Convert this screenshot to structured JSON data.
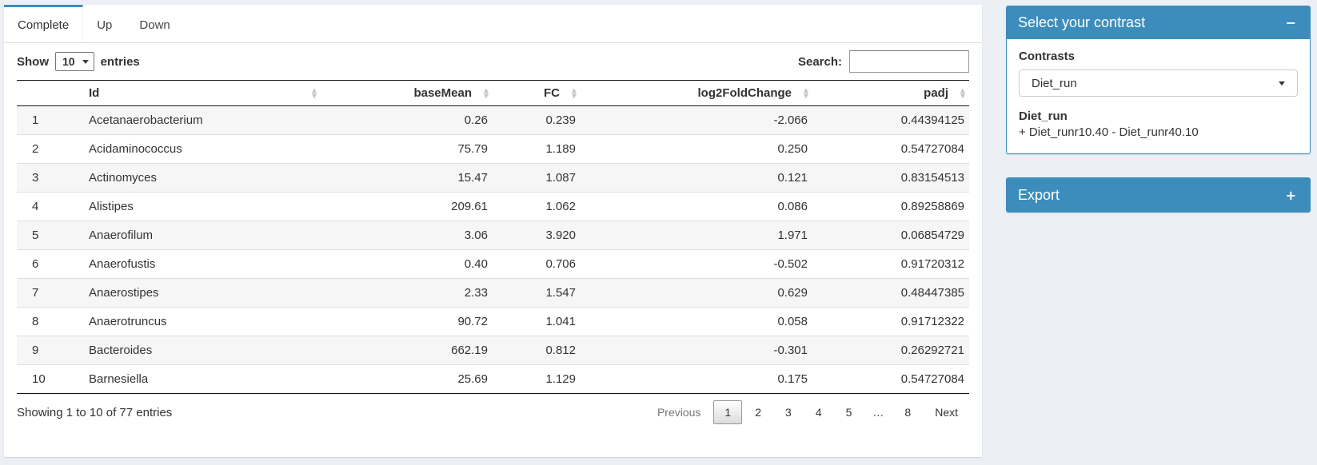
{
  "app": {
    "accent_color": "#3c8dbc",
    "page_bg": "#ecf0f5"
  },
  "tabs": [
    {
      "label": "Complete",
      "active": true
    },
    {
      "label": "Up",
      "active": false
    },
    {
      "label": "Down",
      "active": false
    }
  ],
  "table_controls": {
    "show_label": "Show",
    "page_length": "10",
    "entries_label": "entries",
    "search_label": "Search:",
    "search_value": ""
  },
  "table": {
    "columns": [
      {
        "key": "n",
        "label": "",
        "align": "left",
        "sortable": false
      },
      {
        "key": "id",
        "label": "Id",
        "align": "left",
        "sortable": true
      },
      {
        "key": "baseMean",
        "label": "baseMean",
        "align": "right",
        "sortable": true
      },
      {
        "key": "fc",
        "label": "FC",
        "align": "right",
        "sortable": true
      },
      {
        "key": "log2fc",
        "label": "log2FoldChange",
        "align": "right",
        "sortable": true
      },
      {
        "key": "padj",
        "label": "padj",
        "align": "right",
        "sortable": true
      }
    ],
    "rows": [
      {
        "n": "1",
        "id": "Acetanaerobacterium",
        "baseMean": "0.26",
        "fc": "0.239",
        "log2fc": "-2.066",
        "padj": "0.44394125"
      },
      {
        "n": "2",
        "id": "Acidaminococcus",
        "baseMean": "75.79",
        "fc": "1.189",
        "log2fc": "0.250",
        "padj": "0.54727084"
      },
      {
        "n": "3",
        "id": "Actinomyces",
        "baseMean": "15.47",
        "fc": "1.087",
        "log2fc": "0.121",
        "padj": "0.83154513"
      },
      {
        "n": "4",
        "id": "Alistipes",
        "baseMean": "209.61",
        "fc": "1.062",
        "log2fc": "0.086",
        "padj": "0.89258869"
      },
      {
        "n": "5",
        "id": "Anaerofilum",
        "baseMean": "3.06",
        "fc": "3.920",
        "log2fc": "1.971",
        "padj": "0.06854729"
      },
      {
        "n": "6",
        "id": "Anaerofustis",
        "baseMean": "0.40",
        "fc": "0.706",
        "log2fc": "-0.502",
        "padj": "0.91720312"
      },
      {
        "n": "7",
        "id": "Anaerostipes",
        "baseMean": "2.33",
        "fc": "1.547",
        "log2fc": "0.629",
        "padj": "0.48447385"
      },
      {
        "n": "8",
        "id": "Anaerotruncus",
        "baseMean": "90.72",
        "fc": "1.041",
        "log2fc": "0.058",
        "padj": "0.91712322"
      },
      {
        "n": "9",
        "id": "Bacteroides",
        "baseMean": "662.19",
        "fc": "0.812",
        "log2fc": "-0.301",
        "padj": "0.26292721"
      },
      {
        "n": "10",
        "id": "Barnesiella",
        "baseMean": "25.69",
        "fc": "1.129",
        "log2fc": "0.175",
        "padj": "0.54727084"
      }
    ]
  },
  "table_footer": {
    "info": "Showing 1 to 10 of 77 entries",
    "pagination": [
      {
        "label": "Previous",
        "state": "disabled"
      },
      {
        "label": "1",
        "state": "current"
      },
      {
        "label": "2"
      },
      {
        "label": "3"
      },
      {
        "label": "4"
      },
      {
        "label": "5"
      },
      {
        "label": "…",
        "state": "ellipsis"
      },
      {
        "label": "8"
      },
      {
        "label": "Next"
      }
    ]
  },
  "contrast_box": {
    "title": "Select your contrast",
    "collapse_icon": "−",
    "contrasts_label": "Contrasts",
    "selected_contrast": "Diet_run",
    "contrast_name": "Diet_run",
    "contrast_formula": "+ Diet_runr10.40 - Diet_runr40.10"
  },
  "export_box": {
    "title": "Export",
    "collapse_icon": "+"
  }
}
